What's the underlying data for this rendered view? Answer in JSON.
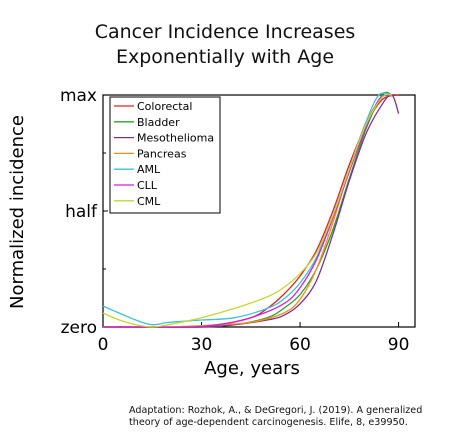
{
  "chart_data": {
    "type": "line",
    "title": [
      "Cancer Incidence Increases",
      "Exponentially with Age"
    ],
    "xlabel": "Age, years",
    "ylabel": "Normalized incidence",
    "xlim": [
      0,
      95
    ],
    "ylim": [
      0,
      1
    ],
    "xticks": [
      0,
      30,
      60,
      90
    ],
    "yticks": [
      {
        "value": 0,
        "label": "zero"
      },
      {
        "value": 0.5,
        "label": "half"
      },
      {
        "value": 1,
        "label": "max"
      }
    ],
    "legend_position": "top-left",
    "series": [
      {
        "name": "Colorectal",
        "color": "#d62728",
        "x": [
          0,
          15,
          25,
          35,
          45,
          50,
          55,
          60,
          65,
          70,
          75,
          80,
          85,
          90
        ],
        "y": [
          0.0,
          0.0,
          0.0,
          0.01,
          0.04,
          0.08,
          0.14,
          0.22,
          0.33,
          0.5,
          0.7,
          0.87,
          0.98,
          1.0
        ]
      },
      {
        "name": "Bladder",
        "color": "#2ca02c",
        "x": [
          0,
          20,
          30,
          40,
          50,
          55,
          60,
          65,
          70,
          75,
          80,
          85,
          88
        ],
        "y": [
          0.0,
          0.0,
          0.0,
          0.01,
          0.04,
          0.08,
          0.14,
          0.25,
          0.42,
          0.64,
          0.85,
          1.0,
          1.0
        ]
      },
      {
        "name": "Mesothelioma",
        "color": "#7b3294",
        "x": [
          0,
          30,
          40,
          50,
          55,
          60,
          65,
          70,
          75,
          80,
          85,
          88,
          90
        ],
        "y": [
          0.0,
          0.0,
          0.01,
          0.03,
          0.05,
          0.1,
          0.2,
          0.4,
          0.63,
          0.83,
          0.96,
          1.0,
          0.92
        ]
      },
      {
        "name": "Pancreas",
        "color": "#ff8c1a",
        "x": [
          0,
          20,
          35,
          45,
          55,
          60,
          65,
          70,
          75,
          80,
          85,
          88
        ],
        "y": [
          0.0,
          0.0,
          0.01,
          0.02,
          0.06,
          0.12,
          0.25,
          0.45,
          0.68,
          0.88,
          0.99,
          1.0
        ]
      },
      {
        "name": "AML",
        "color": "#3fc1d6",
        "x": [
          0,
          5,
          10,
          15,
          20,
          30,
          40,
          50,
          55,
          60,
          65,
          70,
          75,
          80,
          84,
          88
        ],
        "y": [
          0.09,
          0.06,
          0.03,
          0.01,
          0.02,
          0.03,
          0.04,
          0.08,
          0.12,
          0.19,
          0.3,
          0.48,
          0.68,
          0.88,
          1.0,
          1.0
        ]
      },
      {
        "name": "CLL",
        "color": "#d61fd6",
        "x": [
          0,
          25,
          35,
          45,
          55,
          60,
          65,
          70,
          75,
          80,
          84,
          87
        ],
        "y": [
          0.0,
          0.0,
          0.01,
          0.04,
          0.1,
          0.17,
          0.29,
          0.47,
          0.67,
          0.86,
          0.98,
          1.0
        ]
      },
      {
        "name": "CML",
        "color": "#c8d630",
        "x": [
          0,
          5,
          10,
          15,
          20,
          30,
          40,
          50,
          55,
          60,
          65,
          70,
          75,
          80,
          85,
          88
        ],
        "y": [
          0.06,
          0.03,
          0.01,
          0.0,
          0.01,
          0.04,
          0.08,
          0.13,
          0.17,
          0.23,
          0.32,
          0.48,
          0.68,
          0.87,
          0.99,
          1.0
        ]
      }
    ]
  },
  "citation": "Adaptation: Rozhok, A., & DeGregori, J. (2019). A generalized theory of age-dependent carcinogenesis. Elife, 8, e39950."
}
